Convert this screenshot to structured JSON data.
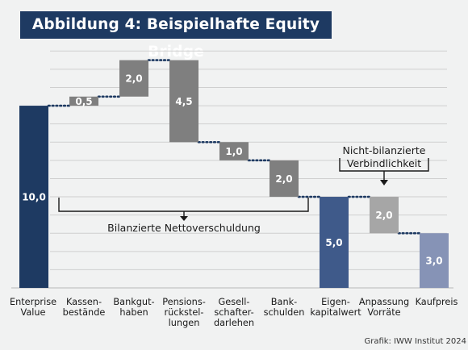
{
  "title": "Abbildung 4: Beispielhafte Equity Bridge",
  "source": "Grafik: IWW Institut 2024",
  "annotations": {
    "net_debt": "Bilanzierte Nettoverschuldung",
    "off_balance_line1": "Nicht-bilanzierte",
    "off_balance_line2": "Verbindlichkeit"
  },
  "colors": {
    "enterprise": "#1e3a62",
    "equity": "#3f5a8a",
    "purchase": "#8693b6",
    "deduction": "#7f7f7f",
    "adjustment": "#a6a6a6",
    "connector": "#1e3a62",
    "grid": "#cfcfcf",
    "title_bg": "#1e3a62"
  },
  "chart_data": {
    "type": "waterfall",
    "title": "Abbildung 4: Beispielhafte Equity Bridge",
    "xlabel": "",
    "ylabel": "",
    "ylim": [
      0,
      13.5
    ],
    "grid": true,
    "categories": [
      [
        "Enterprise",
        "Value"
      ],
      [
        "Kassen-",
        "bestände"
      ],
      [
        "Bankgut-",
        "haben"
      ],
      [
        "Pensions-",
        "rückstel-",
        "lungen"
      ],
      [
        "Gesell-",
        "schafter-",
        "darlehen"
      ],
      [
        "Bank-",
        "schulden"
      ],
      [
        "Eigen-",
        "kapitalwert"
      ],
      [
        "Anpassung",
        "Vorräte"
      ],
      [
        "Kaufpreis"
      ]
    ],
    "bars": [
      {
        "value": 10.0,
        "label": "10,0",
        "start": 0,
        "end": 10.0,
        "kind": "enterprise"
      },
      {
        "value": 0.5,
        "label": "0,5",
        "start": 10.0,
        "end": 10.5,
        "kind": "deduction"
      },
      {
        "value": 2.0,
        "label": "2,0",
        "start": 10.5,
        "end": 12.5,
        "kind": "deduction"
      },
      {
        "value": 4.5,
        "label": "4,5",
        "start": 12.5,
        "end": 8.0,
        "kind": "deduction"
      },
      {
        "value": 1.0,
        "label": "1,0",
        "start": 8.0,
        "end": 7.0,
        "kind": "deduction"
      },
      {
        "value": 2.0,
        "label": "2,0",
        "start": 7.0,
        "end": 5.0,
        "kind": "deduction"
      },
      {
        "value": 5.0,
        "label": "5,0",
        "start": 0,
        "end": 5.0,
        "kind": "equity"
      },
      {
        "value": 2.0,
        "label": "2,0",
        "start": 5.0,
        "end": 3.0,
        "kind": "adjustment"
      },
      {
        "value": 3.0,
        "label": "3,0",
        "start": 0,
        "end": 3.0,
        "kind": "purchase"
      }
    ]
  }
}
